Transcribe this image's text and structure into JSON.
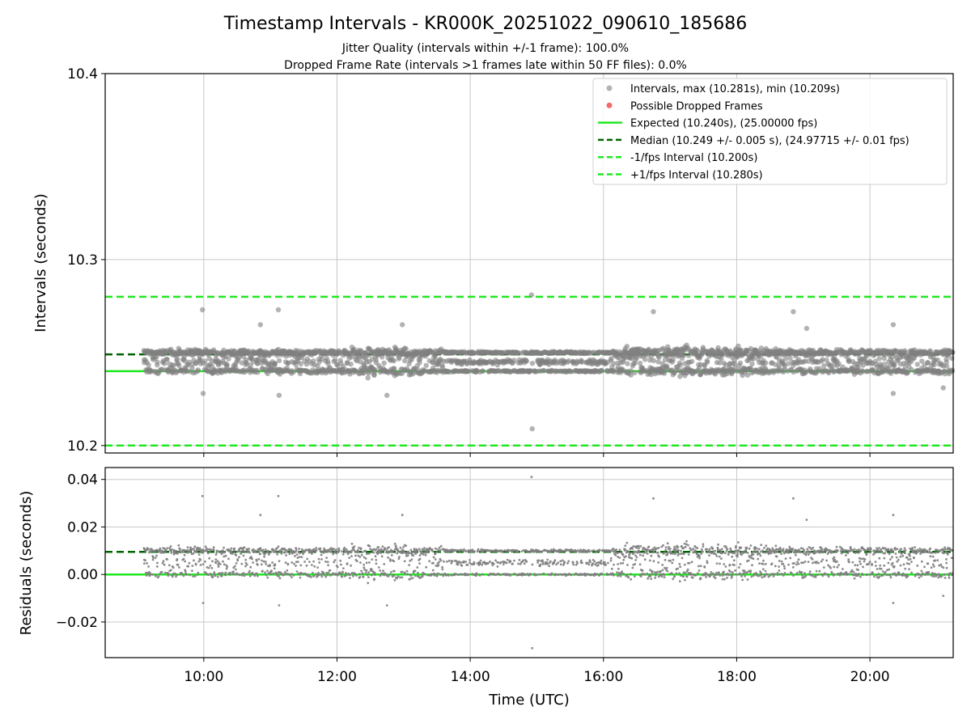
{
  "title": "Timestamp Intervals - KR000K_20251022_090610_185686",
  "subtitle1": "Jitter Quality (intervals within +/-1 frame): 100.0%",
  "subtitle2": "Dropped Frame Rate (intervals >1 frames late within 50 FF files): 0.0%",
  "colors": {
    "points": "#808080",
    "dropped": "#f26b6b",
    "expected": "#1fe81f",
    "median": "#006400",
    "interval": "#1fe81f",
    "grid": "#c8c8c8"
  },
  "chart_data": [
    {
      "type": "scatter",
      "panel": "intervals",
      "ylabel": "Intervals (seconds)",
      "ylim": [
        10.196,
        10.4
      ],
      "yticks": [
        10.2,
        10.3,
        10.4
      ],
      "ytick_labels": [
        "10.2",
        "10.3",
        "10.4"
      ],
      "xlim_hours": [
        8.52,
        21.25
      ],
      "grid": true,
      "legend_position": "top-right",
      "legend": [
        {
          "label": "Intervals, max (10.281s), min (10.209s)",
          "style": "points"
        },
        {
          "label": "Possible Dropped Frames",
          "style": "dropped"
        },
        {
          "label": "Expected (10.240s), (25.00000 fps)",
          "style": "expected"
        },
        {
          "label": "Median (10.249 +/- 0.005 s), (24.97715 +/- 0.01 fps)",
          "style": "median"
        },
        {
          "label": "-1/fps Interval (10.200s)",
          "style": "interval"
        },
        {
          "label": "+1/fps Interval (10.280s)",
          "style": "interval"
        }
      ],
      "lines": {
        "expected": 10.24,
        "median": 10.249,
        "lower": 10.2,
        "upper": 10.28
      },
      "data_range_hours": [
        9.1,
        21.25
      ],
      "bands": {
        "low": 10.24,
        "high": 10.25
      },
      "outliers": [
        {
          "x": 9.98,
          "y": 10.273
        },
        {
          "x": 11.12,
          "y": 10.273
        },
        {
          "x": 14.92,
          "y": 10.281
        },
        {
          "x": 14.93,
          "y": 10.209
        },
        {
          "x": 16.75,
          "y": 10.272
        },
        {
          "x": 18.85,
          "y": 10.272
        },
        {
          "x": 9.99,
          "y": 10.228
        },
        {
          "x": 11.13,
          "y": 10.227
        },
        {
          "x": 12.75,
          "y": 10.227
        },
        {
          "x": 20.35,
          "y": 10.228
        },
        {
          "x": 10.85,
          "y": 10.265
        },
        {
          "x": 12.98,
          "y": 10.265
        },
        {
          "x": 20.35,
          "y": 10.265
        },
        {
          "x": 19.05,
          "y": 10.263
        },
        {
          "x": 21.1,
          "y": 10.231
        }
      ]
    },
    {
      "type": "scatter",
      "panel": "residuals",
      "ylabel": "Residuals (seconds)",
      "xlabel": "Time (UTC)",
      "ylim": [
        -0.035,
        0.045
      ],
      "yticks": [
        -0.02,
        0.0,
        0.02,
        0.04
      ],
      "ytick_labels": [
        "−0.02",
        "0.00",
        "0.02",
        "0.04"
      ],
      "xlim_hours": [
        8.52,
        21.25
      ],
      "xticks_hours": [
        10,
        12,
        14,
        16,
        18,
        20
      ],
      "xtick_labels": [
        "10:00",
        "12:00",
        "14:00",
        "16:00",
        "18:00",
        "20:00"
      ],
      "grid": true,
      "lines": {
        "expected": 0.0,
        "median": 0.0095
      },
      "outliers": [
        {
          "x": 9.98,
          "y": 0.033
        },
        {
          "x": 11.12,
          "y": 0.033
        },
        {
          "x": 14.92,
          "y": 0.041
        },
        {
          "x": 14.93,
          "y": -0.031
        },
        {
          "x": 16.75,
          "y": 0.032
        },
        {
          "x": 18.85,
          "y": 0.032
        },
        {
          "x": 9.99,
          "y": -0.012
        },
        {
          "x": 11.13,
          "y": -0.013
        },
        {
          "x": 12.75,
          "y": -0.013
        },
        {
          "x": 20.35,
          "y": -0.012
        },
        {
          "x": 10.85,
          "y": 0.025
        },
        {
          "x": 12.98,
          "y": 0.025
        },
        {
          "x": 20.35,
          "y": 0.025
        },
        {
          "x": 19.05,
          "y": 0.023
        },
        {
          "x": 21.1,
          "y": -0.009
        }
      ]
    }
  ]
}
